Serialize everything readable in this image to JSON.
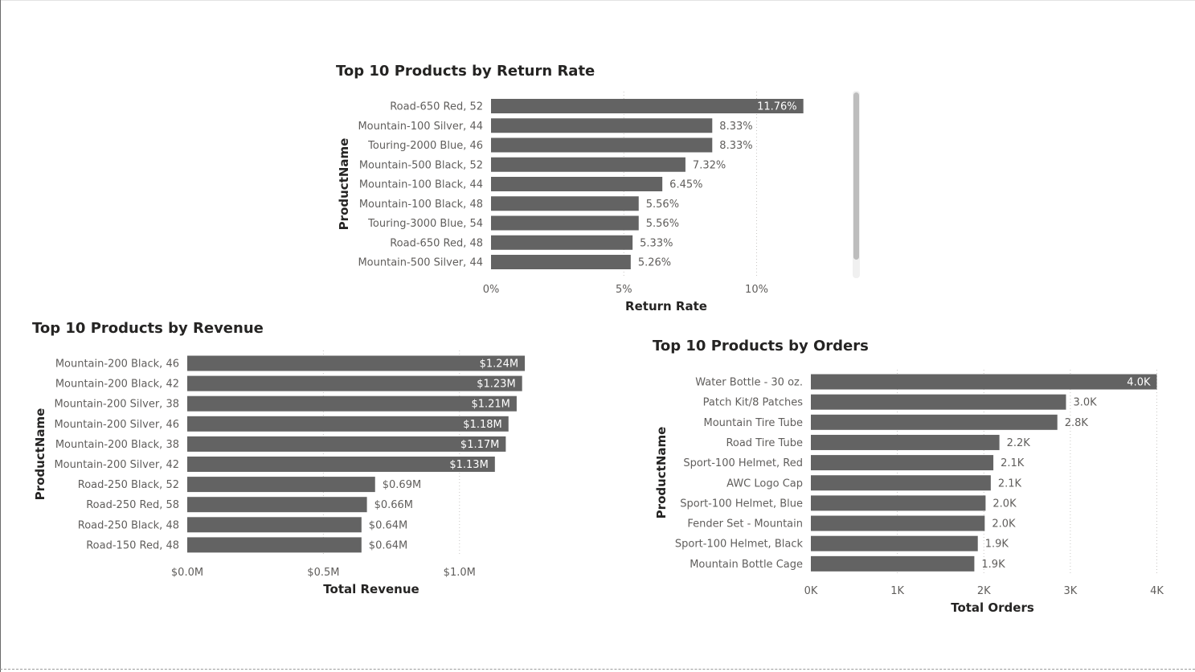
{
  "colors": {
    "bar": "#636363",
    "scrollbar": "#bdbdbd",
    "scroll_track": "#f0f0f0"
  },
  "chart_data": [
    {
      "id": "return-rate",
      "type": "bar",
      "orientation": "horizontal",
      "title": "Top 10 Products by Return Rate",
      "xlabel": "Return Rate",
      "ylabel": "ProductName",
      "categories": [
        "Road-650 Red, 52",
        "Mountain-100 Silver, 44",
        "Touring-2000 Blue, 46",
        "Mountain-500 Black, 52",
        "Mountain-100 Black, 44",
        "Mountain-100 Black, 48",
        "Touring-3000 Blue, 54",
        "Road-650 Red, 48",
        "Mountain-500 Silver, 44"
      ],
      "values": [
        11.76,
        8.33,
        8.33,
        7.32,
        6.45,
        5.56,
        5.56,
        5.33,
        5.26
      ],
      "data_labels": [
        "11.76%",
        "8.33%",
        "8.33%",
        "7.32%",
        "6.45%",
        "5.56%",
        "5.56%",
        "5.33%",
        "5.26%"
      ],
      "xlim": [
        0,
        12
      ],
      "ticks": [
        0,
        5,
        10
      ],
      "tick_labels": [
        "0%",
        "5%",
        "10%"
      ],
      "grid": true,
      "scrollbar": true
    },
    {
      "id": "revenue",
      "type": "bar",
      "orientation": "horizontal",
      "title": "Top 10 Products by Revenue",
      "xlabel": "Total Revenue",
      "ylabel": "ProductName",
      "categories": [
        "Mountain-200 Black, 46",
        "Mountain-200 Black, 42",
        "Mountain-200 Silver, 38",
        "Mountain-200 Silver, 46",
        "Mountain-200 Black, 38",
        "Mountain-200 Silver, 42",
        "Road-250 Black, 52",
        "Road-250 Red, 58",
        "Road-250 Black, 48",
        "Road-150 Red, 48"
      ],
      "values": [
        1.24,
        1.23,
        1.21,
        1.18,
        1.17,
        1.13,
        0.69,
        0.66,
        0.64,
        0.64
      ],
      "data_labels": [
        "$1.24M",
        "$1.23M",
        "$1.21M",
        "$1.18M",
        "$1.17M",
        "$1.13M",
        "$0.69M",
        "$0.66M",
        "$0.64M",
        "$0.64M"
      ],
      "xlim": [
        0,
        1.3
      ],
      "ticks": [
        0,
        0.5,
        1.0
      ],
      "tick_labels": [
        "$0.0M",
        "$0.5M",
        "$1.0M"
      ],
      "grid": true
    },
    {
      "id": "orders",
      "type": "bar",
      "orientation": "horizontal",
      "title": "Top 10 Products by Orders",
      "xlabel": "Total Orders",
      "ylabel": "ProductName",
      "categories": [
        "Water Bottle - 30 oz.",
        "Patch Kit/8 Patches",
        "Mountain Tire Tube",
        "Road Tire Tube",
        "Sport-100 Helmet, Red",
        "AWC Logo Cap",
        "Sport-100 Helmet, Blue",
        "Fender Set - Mountain",
        "Sport-100 Helmet, Black",
        "Mountain Bottle Cage"
      ],
      "values": [
        4.0,
        2.95,
        2.85,
        2.18,
        2.11,
        2.08,
        2.02,
        2.01,
        1.93,
        1.89
      ],
      "data_labels": [
        "4.0K",
        "3.0K",
        "2.8K",
        "2.2K",
        "2.1K",
        "2.1K",
        "2.0K",
        "2.0K",
        "1.9K",
        "1.9K"
      ],
      "xlim": [
        0,
        4
      ],
      "ticks": [
        0,
        1,
        2,
        3,
        4
      ],
      "tick_labels": [
        "0K",
        "1K",
        "2K",
        "3K",
        "4K"
      ],
      "grid": true
    }
  ]
}
